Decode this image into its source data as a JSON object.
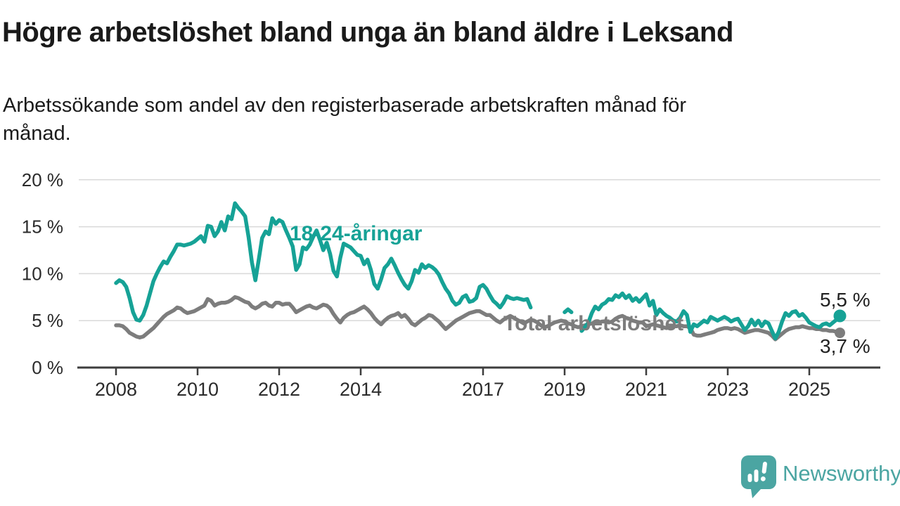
{
  "title": "Högre arbetslöshet bland unga än bland äldre i Leksand",
  "subtitle_line1": "Arbetssökande som andel av den registerbaserade arbetskraften månad för",
  "subtitle_line2": "månad.",
  "branding": {
    "logo_text": "Newsworthy",
    "brand_color": "#4ba5a2"
  },
  "chart_data": {
    "type": "line",
    "title": "Högre arbetslöshet bland unga än bland äldre i Leksand",
    "subtitle": "Arbetssökande som andel av den registerbaserade arbetskraften månad för månad.",
    "x_unit": "month",
    "x_range": [
      "2008-01",
      "2025-10"
    ],
    "ylim": [
      0,
      20
    ],
    "grid": "horizontal",
    "legend_position": "inline-labels",
    "y_tick_labels": [
      "20 %",
      "15 %",
      "10 %",
      "5 %",
      "0 %"
    ],
    "x_tick_labels": [
      "2008",
      "2010",
      "2012",
      "2014",
      "2017",
      "2019",
      "2021",
      "2023",
      "2025"
    ],
    "series": [
      {
        "name": "18-24-åringar",
        "color": "#16a296",
        "end_label": "5,5 %",
        "end_value": 5.5,
        "values": [
          9.0,
          9.3,
          9.1,
          8.6,
          7.4,
          5.9,
          5.1,
          5.0,
          5.6,
          6.6,
          7.9,
          9.2,
          10.0,
          10.7,
          11.3,
          11.1,
          11.8,
          12.4,
          13.1,
          13.1,
          13.0,
          13.1,
          13.2,
          13.4,
          13.7,
          14.0,
          13.4,
          15.1,
          15.0,
          14.0,
          14.5,
          15.5,
          14.6,
          16.1,
          15.8,
          17.5,
          17.0,
          16.6,
          16.1,
          13.9,
          11.2,
          9.3,
          11.5,
          13.8,
          14.5,
          14.2,
          15.9,
          15.3,
          15.7,
          15.5,
          14.6,
          13.8,
          12.9,
          10.4,
          11.0,
          12.8,
          12.6,
          13.1,
          13.9,
          14.6,
          13.6,
          12.5,
          13.3,
          12.1,
          10.3,
          9.7,
          11.7,
          13.2,
          13.0,
          12.8,
          12.4,
          12.0,
          11.9,
          11.0,
          11.5,
          10.4,
          8.9,
          8.4,
          9.4,
          10.6,
          11.0,
          11.6,
          10.9,
          10.1,
          9.4,
          8.8,
          8.4,
          9.2,
          10.4,
          10.1,
          11.0,
          10.6,
          10.9,
          10.7,
          10.4,
          9.9,
          9.1,
          8.4,
          7.9,
          7.1,
          6.7,
          6.9,
          7.5,
          7.7,
          7.0,
          7.1,
          7.4,
          8.6,
          8.8,
          8.4,
          7.7,
          7.1,
          6.8,
          6.4,
          6.9,
          7.6,
          7.4,
          7.3,
          7.4,
          7.3,
          7.2,
          7.3,
          6.4,
          null,
          null,
          null,
          null,
          null,
          null,
          null,
          null,
          null,
          5.9,
          6.2,
          5.9,
          null,
          null,
          3.9,
          4.3,
          4.8,
          5.8,
          6.5,
          6.2,
          6.7,
          6.9,
          7.3,
          7.2,
          7.7,
          7.5,
          7.9,
          7.4,
          7.7,
          7.1,
          7.4,
          7.0,
          7.4,
          7.8,
          6.6,
          7.1,
          5.6,
          6.2,
          5.8,
          5.5,
          5.3,
          5.0,
          4.9,
          5.3,
          6.0,
          5.6,
          3.8,
          4.6,
          4.4,
          4.7,
          5.0,
          4.8,
          5.4,
          5.2,
          5.0,
          5.2,
          5.4,
          5.2,
          4.9,
          5.1,
          5.2,
          4.6,
          4.0,
          4.4,
          5.1,
          4.5,
          5.0,
          4.4,
          4.9,
          4.7,
          3.9,
          3.1,
          3.8,
          4.9,
          5.8,
          5.5,
          5.9,
          6.0,
          5.5,
          5.7,
          5.3,
          4.8,
          4.6,
          4.4,
          4.3,
          4.6,
          4.7,
          4.5,
          4.8,
          5.1,
          5.5
        ]
      },
      {
        "name": "Total arbetslöshet",
        "color": "#7d7d7d",
        "end_label": "3,7 %",
        "end_value": 3.7,
        "values": [
          4.5,
          4.5,
          4.4,
          4.1,
          3.7,
          3.5,
          3.3,
          3.2,
          3.3,
          3.6,
          3.9,
          4.2,
          4.6,
          5.0,
          5.4,
          5.7,
          5.9,
          6.1,
          6.4,
          6.3,
          6.0,
          5.8,
          5.9,
          6.0,
          6.2,
          6.4,
          6.6,
          7.3,
          7.1,
          6.6,
          6.8,
          6.9,
          6.9,
          7.0,
          7.2,
          7.5,
          7.4,
          7.2,
          7.0,
          6.9,
          6.5,
          6.3,
          6.5,
          6.8,
          6.9,
          6.6,
          6.5,
          6.9,
          6.9,
          6.7,
          6.8,
          6.8,
          6.4,
          5.9,
          6.1,
          6.3,
          6.5,
          6.6,
          6.4,
          6.3,
          6.5,
          6.7,
          6.6,
          6.3,
          5.7,
          5.2,
          4.8,
          5.3,
          5.6,
          5.8,
          5.9,
          6.1,
          6.3,
          6.5,
          6.2,
          5.8,
          5.3,
          4.9,
          4.6,
          5.0,
          5.3,
          5.5,
          5.6,
          5.8,
          5.4,
          5.6,
          5.2,
          4.7,
          4.5,
          4.8,
          5.1,
          5.3,
          5.6,
          5.5,
          5.2,
          4.9,
          4.5,
          4.1,
          4.4,
          4.7,
          5.0,
          5.2,
          5.4,
          5.6,
          5.8,
          5.9,
          6.0,
          6.0,
          5.8,
          5.6,
          5.6,
          5.3,
          5.0,
          4.8,
          5.1,
          5.3,
          5.5,
          5.3,
          5.1,
          4.9,
          4.7,
          4.9,
          5.1,
          5.0,
          4.8,
          4.5,
          4.3,
          4.4,
          4.6,
          4.8,
          4.9,
          5.0,
          4.9,
          4.7,
          4.6,
          4.4,
          4.3,
          4.4,
          4.5,
          4.6,
          4.7,
          4.8,
          4.8,
          4.9,
          4.9,
          4.8,
          4.9,
          5.2,
          5.4,
          5.5,
          5.3,
          5.2,
          5.0,
          4.9,
          4.8,
          4.8,
          4.4,
          4.5,
          4.6,
          4.5,
          4.4,
          4.3,
          4.2,
          4.3,
          4.4,
          4.4,
          4.5,
          4.4,
          4.4,
          4.2,
          3.5,
          3.4,
          3.4,
          3.5,
          3.6,
          3.7,
          3.8,
          4.0,
          4.1,
          4.2,
          4.2,
          4.1,
          4.2,
          4.1,
          3.9,
          3.7,
          3.8,
          3.9,
          4.0,
          4.0,
          3.9,
          3.8,
          3.7,
          3.4,
          3.0,
          3.3,
          3.6,
          3.9,
          4.1,
          4.2,
          4.3,
          4.3,
          4.4,
          4.3,
          4.2,
          4.2,
          4.1,
          4.1,
          4.0,
          4.0,
          3.9,
          3.9,
          3.8,
          3.7
        ]
      }
    ]
  }
}
